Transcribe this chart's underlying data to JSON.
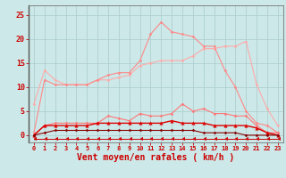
{
  "x": [
    0,
    1,
    2,
    3,
    4,
    5,
    6,
    7,
    8,
    9,
    10,
    11,
    12,
    13,
    14,
    15,
    16,
    17,
    18,
    19,
    20,
    21,
    22,
    23
  ],
  "background_color": "#cce8e8",
  "grid_color": "#aacccc",
  "xlabel": "Vent moyen/en rafales ( km/h )",
  "xlabel_color": "#cc0000",
  "xlabel_fontsize": 7,
  "tick_color": "#cc0000",
  "yticks": [
    0,
    5,
    10,
    15,
    20,
    25
  ],
  "ylim": [
    -1.5,
    27
  ],
  "xlim": [
    -0.5,
    23.5
  ],
  "lines": [
    {
      "color": "#ffaaaa",
      "lw": 0.8,
      "marker": "D",
      "markersize": 1.5,
      "data": [
        6.5,
        13.5,
        11.5,
        10.5,
        10.5,
        10.5,
        11.5,
        11.5,
        12.0,
        12.5,
        14.5,
        15.0,
        15.5,
        15.5,
        15.5,
        16.5,
        18.0,
        18.0,
        18.5,
        18.5,
        19.5,
        10.5,
        5.5,
        2.0
      ]
    },
    {
      "color": "#ff8888",
      "lw": 0.8,
      "marker": "D",
      "markersize": 1.5,
      "data": [
        0.5,
        11.5,
        10.5,
        10.5,
        10.5,
        10.5,
        11.5,
        12.5,
        13.0,
        13.0,
        15.5,
        21.0,
        23.5,
        21.5,
        21.0,
        20.5,
        18.5,
        18.5,
        13.5,
        10.0,
        5.0,
        2.5,
        2.0,
        0.5
      ]
    },
    {
      "color": "#ff7777",
      "lw": 0.8,
      "marker": "D",
      "markersize": 1.5,
      "data": [
        0.0,
        2.0,
        2.5,
        2.5,
        2.5,
        2.5,
        2.5,
        4.0,
        3.5,
        3.0,
        4.5,
        4.0,
        4.0,
        4.5,
        6.5,
        5.0,
        5.5,
        4.5,
        4.5,
        4.0,
        4.0,
        2.0,
        0.5,
        0.5
      ]
    },
    {
      "color": "#dd0000",
      "lw": 1.0,
      "marker": "^",
      "markersize": 2.5,
      "data": [
        0.0,
        2.0,
        2.0,
        2.0,
        2.0,
        2.0,
        2.5,
        2.5,
        2.5,
        2.5,
        2.5,
        2.5,
        2.5,
        3.0,
        2.5,
        2.5,
        2.5,
        2.0,
        2.0,
        2.0,
        2.0,
        1.5,
        0.5,
        0.0
      ]
    },
    {
      "color": "#880000",
      "lw": 0.8,
      "marker": "D",
      "markersize": 1.5,
      "data": [
        0.0,
        0.5,
        1.0,
        1.0,
        1.0,
        1.0,
        1.0,
        1.0,
        1.0,
        1.0,
        1.0,
        1.0,
        1.0,
        1.0,
        1.0,
        1.0,
        0.5,
        0.5,
        0.5,
        0.5,
        0.0,
        0.0,
        0.0,
        0.0
      ]
    },
    {
      "color": "#cc0000",
      "lw": 0.7,
      "marker": 4,
      "markersize": 3,
      "data": [
        -0.7,
        -0.7,
        -0.7,
        -0.7,
        -0.7,
        -0.7,
        -0.7,
        -0.7,
        -0.7,
        -0.7,
        -0.7,
        -0.7,
        -0.7,
        -0.7,
        -0.7,
        -0.7,
        -0.7,
        -0.7,
        -0.7,
        -0.7,
        -0.7,
        -0.7,
        -0.7,
        -0.7
      ]
    }
  ]
}
